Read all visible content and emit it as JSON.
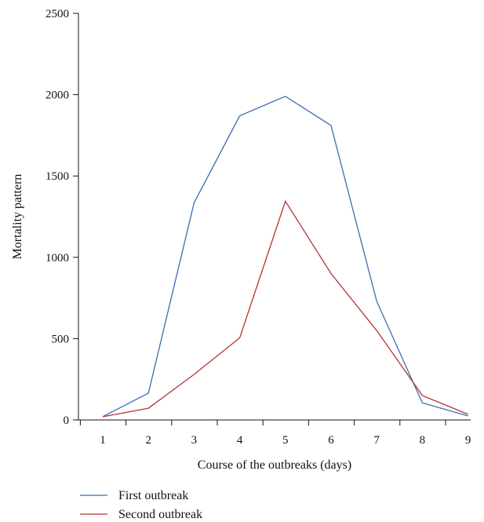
{
  "chart_data": {
    "type": "line",
    "title": "",
    "xlabel": "Course of the outbreaks (days)",
    "ylabel": "Mortality pattern",
    "categories": [
      "1",
      "2",
      "3",
      "4",
      "5",
      "6",
      "7",
      "8",
      "9"
    ],
    "ylim": [
      0,
      2500
    ],
    "yticks": [
      "0",
      "500",
      "1000",
      "1500",
      "2000",
      "2500"
    ],
    "grid": false,
    "legend_position": "bottom-left",
    "series": [
      {
        "name": "First outbreak",
        "color": "#3b6fb0",
        "values": [
          20,
          165,
          1335,
          1870,
          1990,
          1810,
          730,
          105,
          25
        ]
      },
      {
        "name": "Second outbreak",
        "color": "#b83232",
        "values": [
          20,
          72,
          280,
          505,
          1345,
          900,
          550,
          150,
          35
        ]
      }
    ]
  }
}
